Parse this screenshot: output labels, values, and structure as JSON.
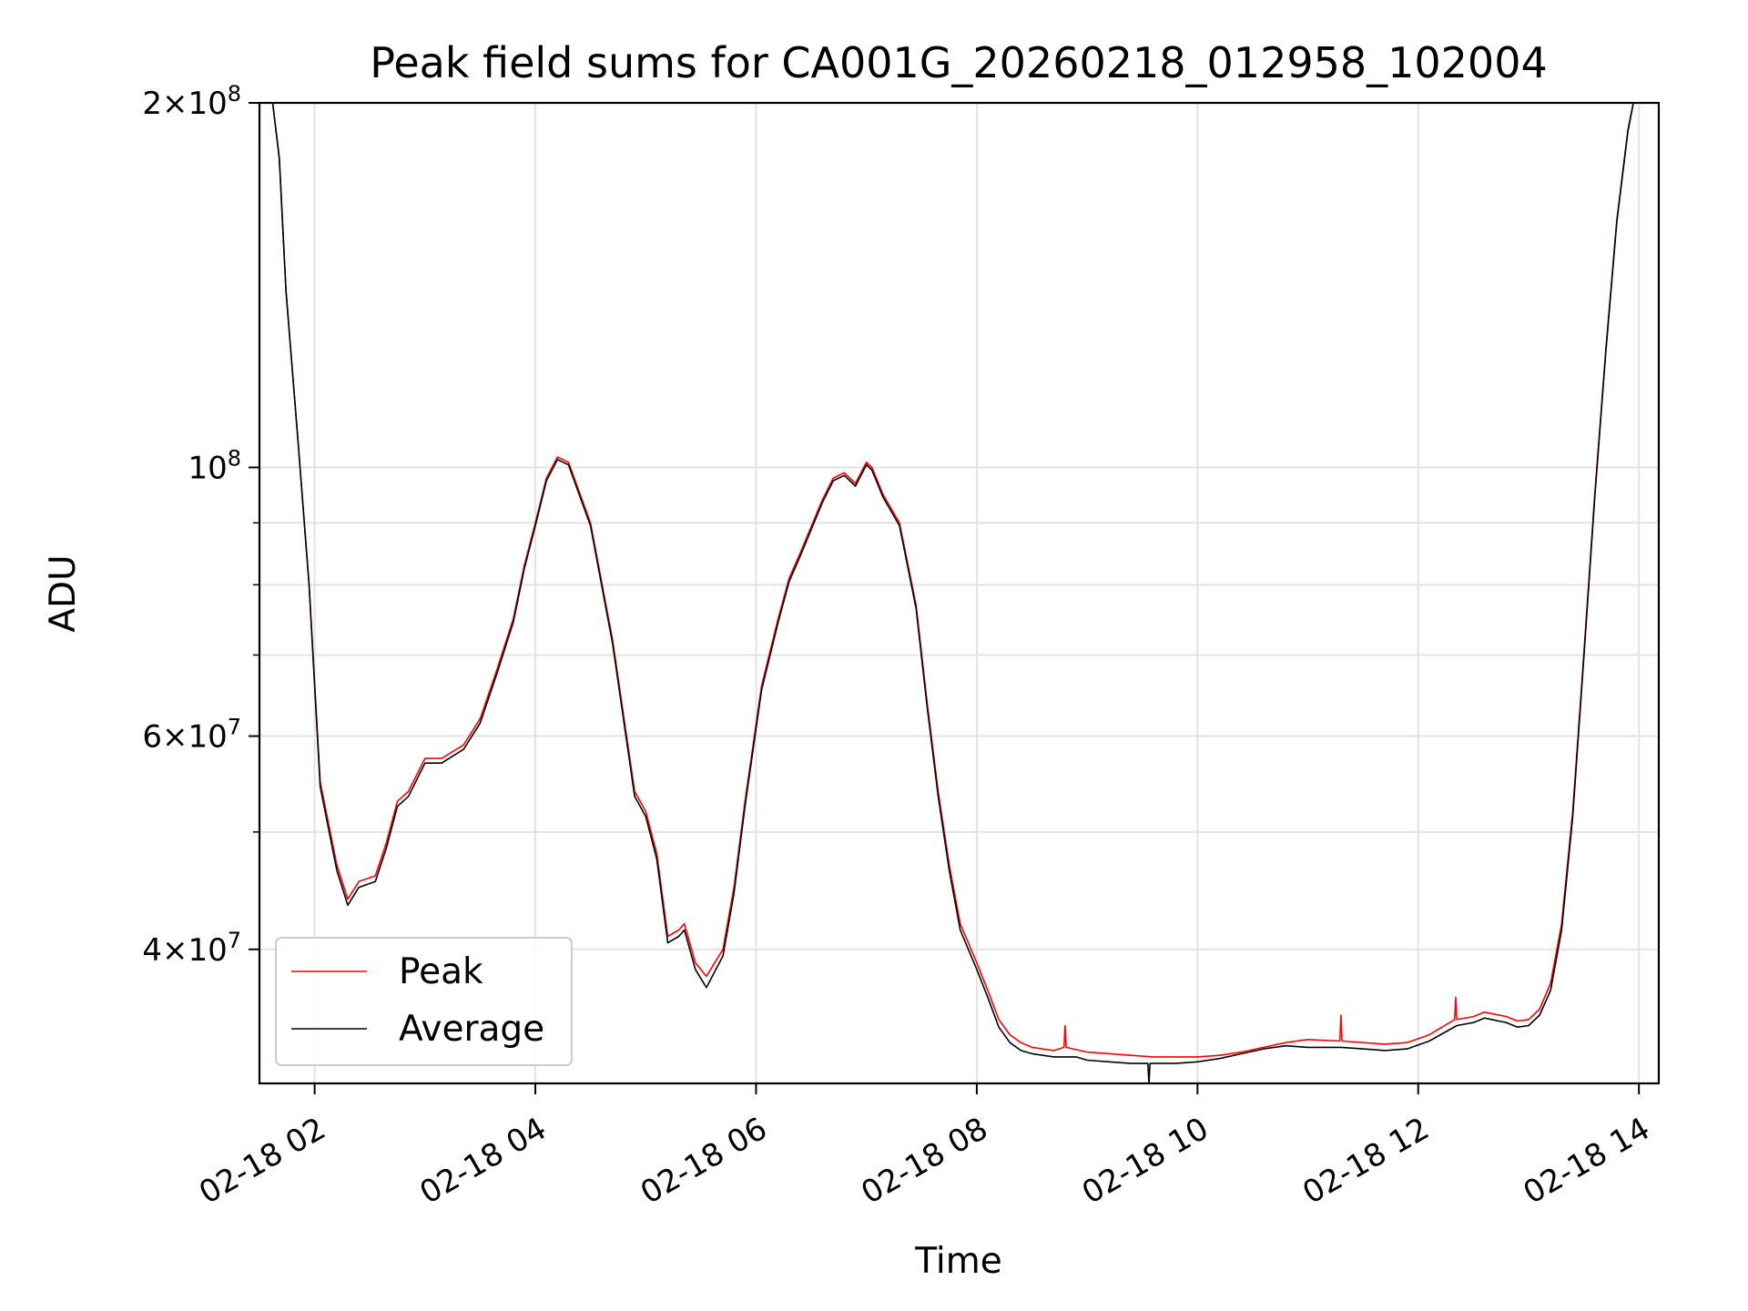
{
  "chart_data": {
    "type": "line",
    "title": "Peak field sums for CA001G_20260218_012958_102004",
    "xlabel": "Time",
    "ylabel": "ADU",
    "yscale": "log",
    "ylim": [
      31000000,
      200000000
    ],
    "xlim_hours": [
      1.5,
      14.18
    ],
    "grid": true,
    "legend_position": "lower-left",
    "x_ticks": [
      {
        "value": 2,
        "label": "02-18 02"
      },
      {
        "value": 4,
        "label": "02-18 04"
      },
      {
        "value": 6,
        "label": "02-18 06"
      },
      {
        "value": 8,
        "label": "02-18 08"
      },
      {
        "value": 10,
        "label": "02-18 10"
      },
      {
        "value": 12,
        "label": "02-18 12"
      },
      {
        "value": 14,
        "label": "02-18 14"
      }
    ],
    "y_ticks": [
      {
        "value": 40000000,
        "base": "4",
        "sci": true
      },
      {
        "value": 60000000,
        "base": "6",
        "sci": true
      },
      {
        "value": 100000000,
        "base": "",
        "sci": false
      },
      {
        "value": 200000000,
        "base": "2",
        "sci": true
      }
    ],
    "y_minor": [
      50000000,
      70000000,
      80000000,
      90000000
    ],
    "series": [
      {
        "name": "Peak",
        "color": "#ff0000",
        "x": [
          1.5,
          1.62,
          1.68,
          1.74,
          1.85,
          1.95,
          2.05,
          2.2,
          2.3,
          2.4,
          2.55,
          2.65,
          2.75,
          2.85,
          3.0,
          3.15,
          3.35,
          3.5,
          3.65,
          3.8,
          3.9,
          4.0,
          4.1,
          4.2,
          4.3,
          4.5,
          4.7,
          4.9,
          5.0,
          5.1,
          5.2,
          5.3,
          5.35,
          5.45,
          5.55,
          5.7,
          5.8,
          5.9,
          6.05,
          6.2,
          6.3,
          6.4,
          6.6,
          6.7,
          6.8,
          6.9,
          7.0,
          7.05,
          7.15,
          7.3,
          7.45,
          7.55,
          7.65,
          7.75,
          7.85,
          8.0,
          8.1,
          8.2,
          8.3,
          8.4,
          8.5,
          8.7,
          8.79,
          8.8,
          8.81,
          9.0,
          9.2,
          9.4,
          9.6,
          9.8,
          10.0,
          10.2,
          10.4,
          10.6,
          10.8,
          11.0,
          11.29,
          11.3,
          11.31,
          11.5,
          11.7,
          11.9,
          12.1,
          12.33,
          12.34,
          12.35,
          12.5,
          12.6,
          12.8,
          12.9,
          13.0,
          13.1,
          13.2,
          13.3,
          13.4,
          13.5,
          13.6,
          13.7,
          13.8,
          13.9,
          13.95,
          14.0,
          14.18
        ],
        "y": [
          200000000,
          200000000,
          180000000,
          140000000,
          105000000,
          80000000,
          55000000,
          47000000,
          44000000,
          45500000,
          46000000,
          49000000,
          53000000,
          54000000,
          57500000,
          57500000,
          59000000,
          62000000,
          68000000,
          75000000,
          83000000,
          90000000,
          98000000,
          102000000,
          101000000,
          90000000,
          72000000,
          54000000,
          52000000,
          48000000,
          41000000,
          41500000,
          42000000,
          39000000,
          38000000,
          40000000,
          45000000,
          53000000,
          66000000,
          75000000,
          81000000,
          85000000,
          94000000,
          98000000,
          99000000,
          97000000,
          101000000,
          100000000,
          95000000,
          90000000,
          77000000,
          64000000,
          54000000,
          47000000,
          42000000,
          39000000,
          37000000,
          35000000,
          34000000,
          33500000,
          33200000,
          33000000,
          33200000,
          34600000,
          33200000,
          32900000,
          32800000,
          32700000,
          32600000,
          32600000,
          32600000,
          32700000,
          32900000,
          33200000,
          33500000,
          33700000,
          33600000,
          35300000,
          33600000,
          33500000,
          33400000,
          33500000,
          34000000,
          35000000,
          36500000,
          35000000,
          35200000,
          35500000,
          35200000,
          34900000,
          35000000,
          35700000,
          37500000,
          42000000,
          52000000,
          70000000,
          95000000,
          125000000,
          160000000,
          190000000,
          200000000,
          200000000,
          200000000
        ]
      },
      {
        "name": "Average",
        "color": "#000000",
        "x": [
          1.5,
          1.62,
          1.68,
          1.74,
          1.85,
          1.95,
          2.05,
          2.2,
          2.3,
          2.4,
          2.55,
          2.65,
          2.75,
          2.85,
          3.0,
          3.15,
          3.35,
          3.5,
          3.65,
          3.8,
          3.9,
          4.0,
          4.1,
          4.2,
          4.3,
          4.5,
          4.7,
          4.9,
          5.0,
          5.1,
          5.2,
          5.3,
          5.35,
          5.45,
          5.55,
          5.7,
          5.8,
          5.9,
          6.05,
          6.2,
          6.3,
          6.4,
          6.6,
          6.7,
          6.8,
          6.9,
          7.0,
          7.05,
          7.15,
          7.3,
          7.45,
          7.55,
          7.65,
          7.75,
          7.85,
          8.0,
          8.1,
          8.2,
          8.3,
          8.4,
          8.5,
          8.7,
          8.9,
          9.0,
          9.2,
          9.4,
          9.55,
          9.56,
          9.57,
          9.6,
          9.8,
          10.0,
          10.2,
          10.4,
          10.6,
          10.8,
          11.0,
          11.3,
          11.5,
          11.7,
          11.9,
          12.1,
          12.35,
          12.5,
          12.6,
          12.8,
          12.9,
          13.0,
          13.1,
          13.2,
          13.3,
          13.4,
          13.5,
          13.6,
          13.7,
          13.8,
          13.9,
          13.95,
          14.0,
          14.18
        ],
        "y": [
          200000000,
          200000000,
          180000000,
          140000000,
          105000000,
          80000000,
          54500000,
          46500000,
          43500000,
          45000000,
          45500000,
          48500000,
          52500000,
          53500000,
          57000000,
          57000000,
          58500000,
          61500000,
          67500000,
          74500000,
          82500000,
          89500000,
          97500000,
          101500000,
          100500000,
          89500000,
          71500000,
          53500000,
          51500000,
          47500000,
          40500000,
          41000000,
          41500000,
          38500000,
          37200000,
          39500000,
          44500000,
          52500000,
          65500000,
          74500000,
          80500000,
          84500000,
          93500000,
          97500000,
          98500000,
          96500000,
          100500000,
          99500000,
          94500000,
          89500000,
          76500000,
          63500000,
          53500000,
          46500000,
          41500000,
          38500000,
          36500000,
          34500000,
          33500000,
          33000000,
          32800000,
          32600000,
          32600000,
          32400000,
          32300000,
          32200000,
          32200000,
          31000000,
          32200000,
          32200000,
          32200000,
          32300000,
          32500000,
          32800000,
          33100000,
          33300000,
          33200000,
          33200000,
          33100000,
          33000000,
          33100000,
          33600000,
          34600000,
          34800000,
          35100000,
          34800000,
          34500000,
          34600000,
          35300000,
          37000000,
          41500000,
          51500000,
          69500000,
          94500000,
          124500000,
          159500000,
          189500000,
          200000000,
          200000000,
          200000000
        ]
      }
    ]
  }
}
